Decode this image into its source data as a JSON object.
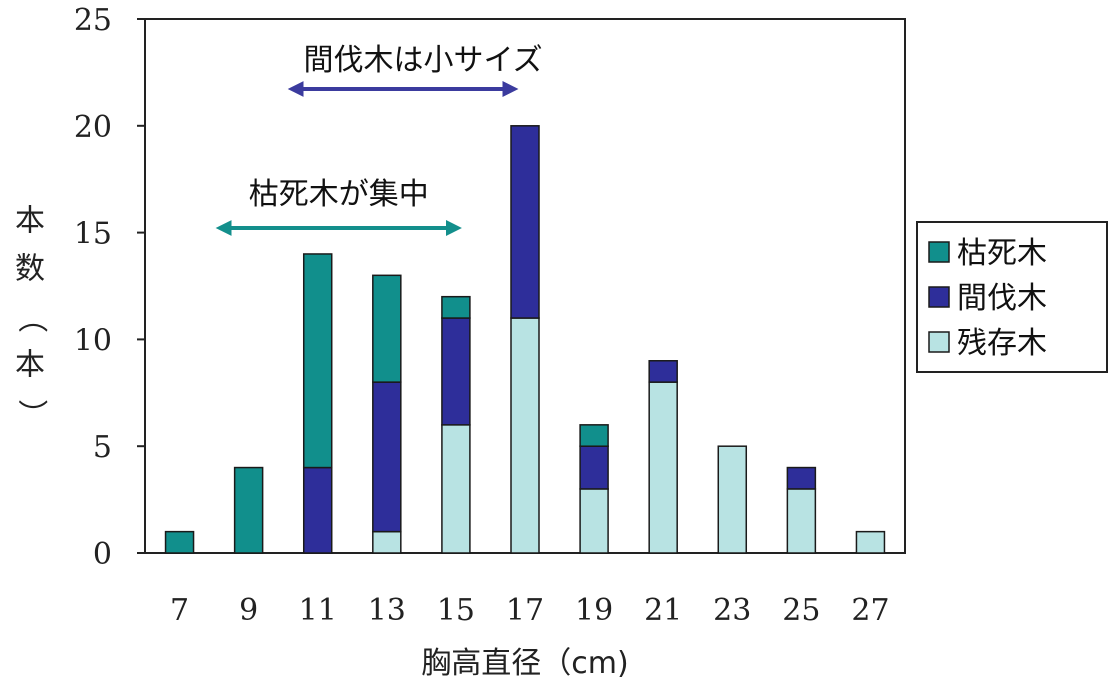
{
  "chart_data": {
    "type": "bar",
    "stacked": true,
    "categories": [
      "7",
      "9",
      "11",
      "13",
      "15",
      "17",
      "19",
      "21",
      "23",
      "25",
      "27"
    ],
    "series": [
      {
        "name": "残存木",
        "color": "#b8e3e3",
        "values": [
          0,
          0,
          0,
          1,
          6,
          11,
          3,
          8,
          5,
          3,
          1
        ]
      },
      {
        "name": "間伐木",
        "color": "#2e2e9a",
        "values": [
          0,
          0,
          4,
          7,
          5,
          9,
          2,
          1,
          0,
          1,
          0
        ]
      },
      {
        "name": "枯死木",
        "color": "#118f8c",
        "values": [
          1,
          4,
          10,
          5,
          1,
          0,
          1,
          0,
          0,
          0,
          0
        ]
      }
    ],
    "title": "",
    "xlabel": "胸高直径（cm)",
    "ylabel": "本数（本）",
    "ylim": [
      0,
      25
    ],
    "yticks": [
      "0",
      "5",
      "10",
      "15",
      "20",
      "25"
    ],
    "grid": false,
    "legend_position": "right",
    "annotations": [
      {
        "text": "間伐木は小サイズ",
        "color": "#3b3b9e",
        "from": "11",
        "to": "16"
      },
      {
        "text": "枯死木が集中",
        "color": "#138f8c",
        "from": "9",
        "to": "15"
      }
    ]
  }
}
